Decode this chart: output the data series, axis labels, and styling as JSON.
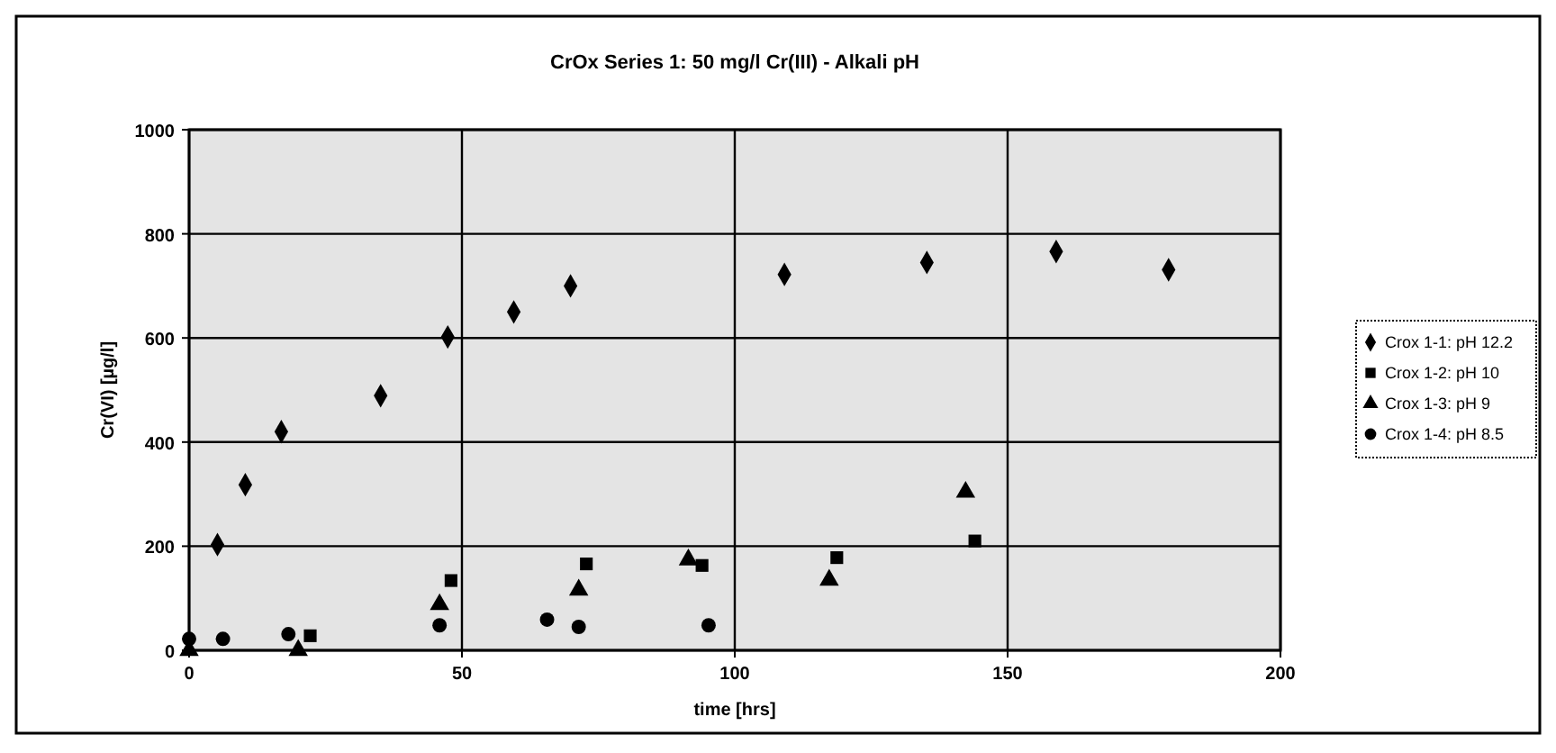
{
  "chart_data": {
    "type": "scatter",
    "title": "CrOx Series 1: 50 mg/l Cr(III) -  Alkali pH",
    "xlabel": "time [hrs]",
    "ylabel": "Cr(VI) [µg/l]",
    "xlim": [
      0,
      200
    ],
    "ylim": [
      0,
      1000
    ],
    "xticks": [
      0,
      50,
      100,
      150,
      200
    ],
    "yticks": [
      0,
      200,
      400,
      600,
      800,
      1000
    ],
    "grid": true,
    "legend": "right",
    "series": [
      {
        "name": "Crox 1-1: pH 12.2",
        "color": "#000000",
        "marker": "diamond",
        "x": [
          5.2,
          10.3,
          16.9,
          35.1,
          47.4,
          59.5,
          69.9,
          109.1,
          135.2,
          158.9,
          179.5
        ],
        "values": [
          203,
          318,
          420,
          489,
          602,
          650,
          700,
          722,
          745,
          766,
          731
        ]
      },
      {
        "name": "Crox 1-2: pH 10",
        "color": "#000000",
        "marker": "square",
        "x": [
          22.2,
          48,
          72.8,
          94,
          118.7,
          144
        ],
        "values": [
          28,
          134,
          166,
          163,
          178,
          210
        ]
      },
      {
        "name": "Crox 1-3: pH 9",
        "color": "#000000",
        "marker": "triangle",
        "x": [
          0,
          20,
          45.9,
          71.4,
          91.5,
          117.3,
          142.3
        ],
        "values": [
          0,
          0,
          88,
          116,
          174,
          135,
          304
        ]
      },
      {
        "name": "Crox 1-4: pH 8.5",
        "color": "#000000",
        "marker": "circle",
        "x": [
          0,
          6.2,
          18.2,
          45.9,
          65.6,
          71.4,
          95.2
        ],
        "values": [
          22,
          22,
          31,
          48,
          59,
          45,
          48
        ]
      }
    ]
  }
}
